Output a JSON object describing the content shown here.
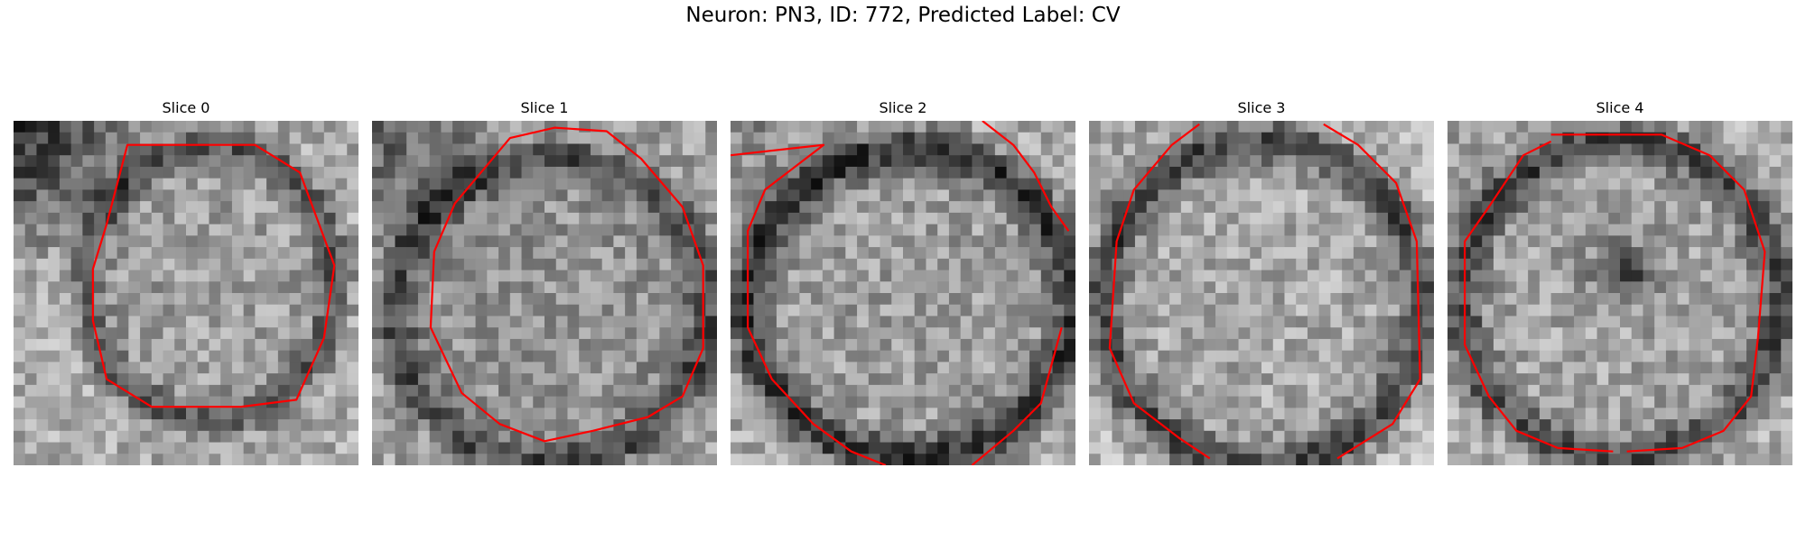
{
  "figure": {
    "title": "Neuron: PN3, ID: 772, Predicted Label: CV",
    "grid_cells": 30,
    "contour_color": "#ff0000",
    "panels": [
      {
        "title": "Slice 0"
      },
      {
        "title": "Slice 1"
      },
      {
        "title": "Slice 2"
      },
      {
        "title": "Slice 3"
      },
      {
        "title": "Slice 4"
      }
    ]
  }
}
